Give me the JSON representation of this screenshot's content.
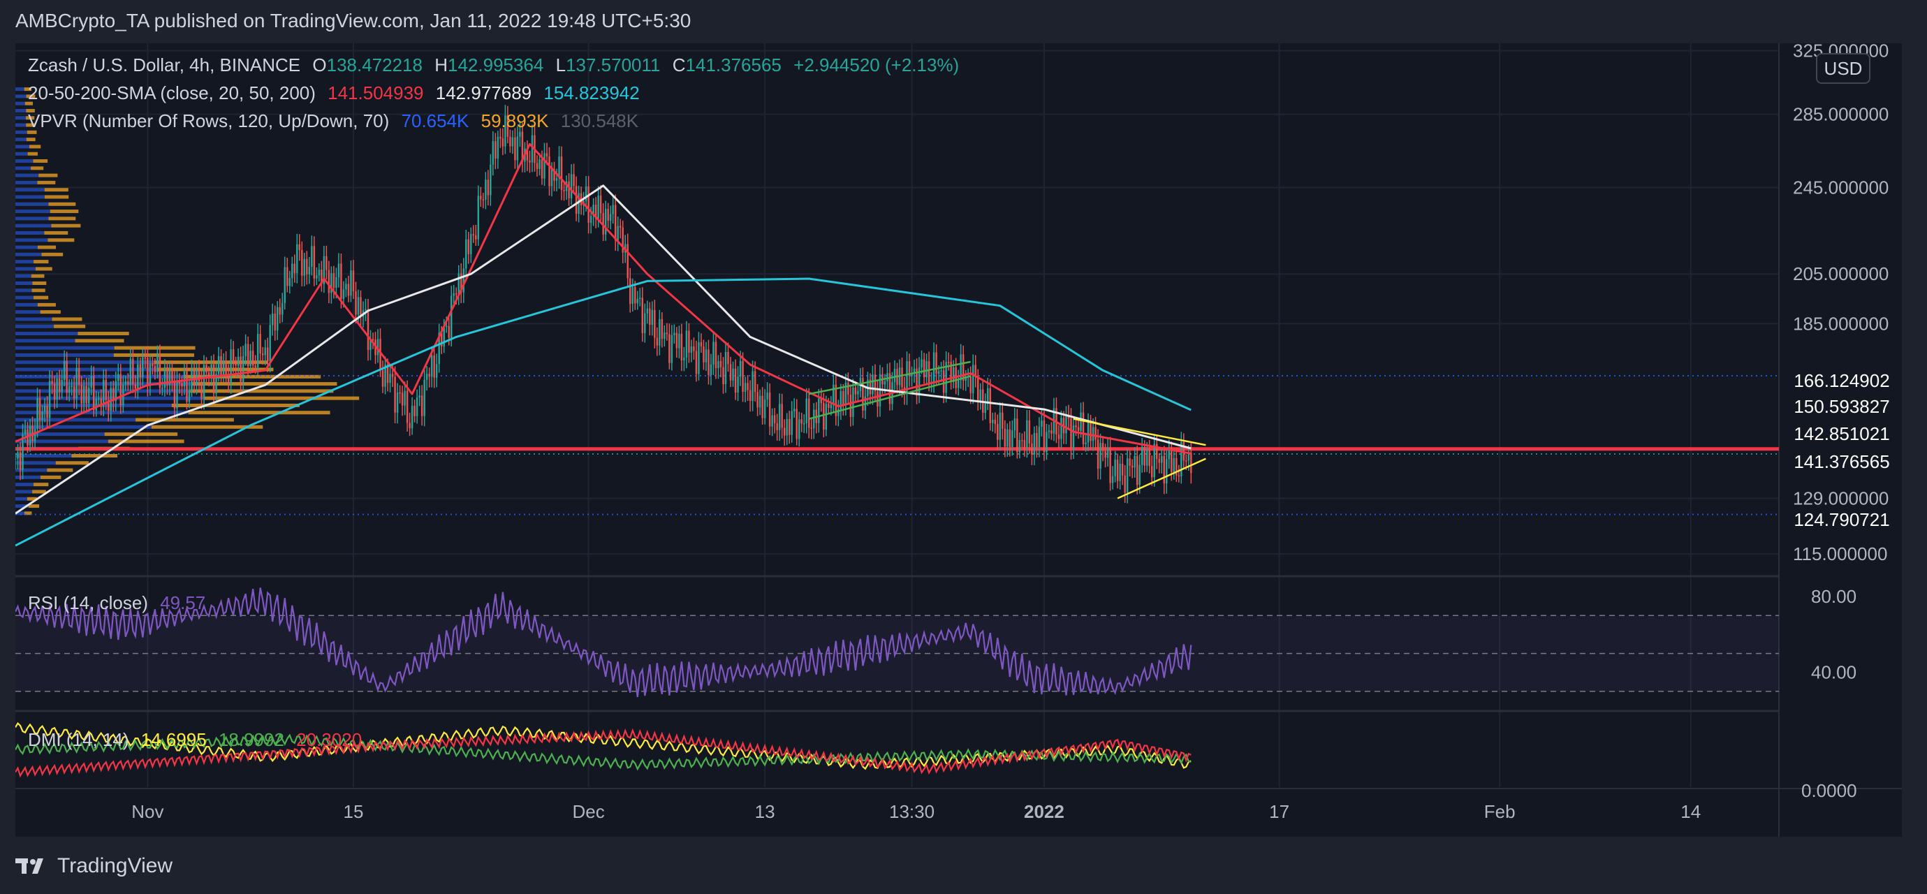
{
  "header": {
    "publisher": "AMBCrypto_TA published on TradingView.com, Jan 11, 2022 19:48 UTC+5:30"
  },
  "footer": {
    "brand": "TradingView"
  },
  "legend": {
    "symbol": "Zcash / U.S. Dollar, 4h, BINANCE",
    "ohlc": {
      "o_label": "O",
      "o": "138.472218",
      "h_label": "H",
      "h": "142.995364",
      "l_label": "L",
      "l": "137.570011",
      "c_label": "C",
      "c": "141.376565",
      "change": "+2.944520 (+2.13%)"
    },
    "sma": {
      "label": "20-50-200-SMA (close, 20, 50, 200)",
      "v20": "141.504939",
      "v50": "142.977689",
      "v200": "154.823942"
    },
    "vpvr": {
      "label": "VPVR (Number Of Rows, 120, Up/Down, 70)",
      "up": "70.654K",
      "down": "59.893K",
      "total": "130.548K"
    },
    "rsi": {
      "label": "RSI (14, close)",
      "value": "49.57"
    },
    "dmi": {
      "label": "DMI (14, 14)",
      "adx": "14.6995",
      "plus": "18.9992",
      "minus": "20.3020"
    }
  },
  "axis": {
    "currency": "USD",
    "price_ticks": [
      "325.000000",
      "285.000000",
      "245.000000",
      "205.000000",
      "185.000000",
      "129.000000",
      "115.000000"
    ],
    "rsi_ticks": [
      "80.00",
      "40.00"
    ],
    "dmi_ticks": [
      "0.0000"
    ],
    "time_ticks": [
      "Nov",
      "15",
      "Dec",
      "13",
      "13:30",
      "2022",
      "17",
      "Feb",
      "14"
    ]
  },
  "price_tags": [
    {
      "value": "166.124902",
      "color": "#2962ff"
    },
    {
      "value": "150.593827",
      "color": "#f23645"
    },
    {
      "value": "142.851021",
      "color": "#2962ff"
    },
    {
      "value": "141.376565",
      "color": "#26a69a"
    },
    {
      "value": "124.790721",
      "color": "#2962ff"
    }
  ],
  "colors": {
    "sma20": "#f23645",
    "sma50": "#e8e8e8",
    "sma200": "#26c6da",
    "up": "#26a69a",
    "down": "#ef5350",
    "rsi": "#7e57c2",
    "adx": "#ffeb3b",
    "plus_di": "#4caf50",
    "minus_di": "#f23645",
    "vp_up": "#2962ff",
    "vp_down": "#f5a623"
  },
  "chart_data": [
    {
      "type": "line",
      "title": "Zcash / U.S. Dollar, 4h, BINANCE",
      "x_range": [
        "2021-10-23",
        "2022-02-20"
      ],
      "ylim": [
        110,
        330
      ],
      "y_scale": "log",
      "grid": true,
      "horizontal_levels": [
        166.124902,
        150.593827,
        142.851021,
        141.376565,
        124.790721
      ],
      "close_path": [
        {
          "x": "2021-10-23",
          "y": 140
        },
        {
          "x": "2021-10-26",
          "y": 165
        },
        {
          "x": "2021-10-29",
          "y": 158
        },
        {
          "x": "2021-11-01",
          "y": 170
        },
        {
          "x": "2021-11-03",
          "y": 162
        },
        {
          "x": "2021-11-06",
          "y": 168
        },
        {
          "x": "2021-11-09",
          "y": 175
        },
        {
          "x": "2021-11-11",
          "y": 212
        },
        {
          "x": "2021-11-13",
          "y": 205
        },
        {
          "x": "2021-11-15",
          "y": 198
        },
        {
          "x": "2021-11-17",
          "y": 168
        },
        {
          "x": "2021-11-19",
          "y": 152
        },
        {
          "x": "2021-11-21",
          "y": 178
        },
        {
          "x": "2021-11-23",
          "y": 220
        },
        {
          "x": "2021-11-25",
          "y": 275
        },
        {
          "x": "2021-11-27",
          "y": 262
        },
        {
          "x": "2021-11-29",
          "y": 250
        },
        {
          "x": "2021-12-01",
          "y": 235
        },
        {
          "x": "2021-12-03",
          "y": 228
        },
        {
          "x": "2021-12-04",
          "y": 195
        },
        {
          "x": "2021-12-06",
          "y": 180
        },
        {
          "x": "2021-12-08",
          "y": 175
        },
        {
          "x": "2021-12-10",
          "y": 170
        },
        {
          "x": "2021-12-12",
          "y": 162
        },
        {
          "x": "2021-12-14",
          "y": 150
        },
        {
          "x": "2021-12-16",
          "y": 152
        },
        {
          "x": "2021-12-18",
          "y": 158
        },
        {
          "x": "2021-12-21",
          "y": 163
        },
        {
          "x": "2021-12-24",
          "y": 168
        },
        {
          "x": "2021-12-27",
          "y": 166
        },
        {
          "x": "2021-12-29",
          "y": 148
        },
        {
          "x": "2021-12-31",
          "y": 145
        },
        {
          "x": "2022-01-02",
          "y": 150
        },
        {
          "x": "2022-01-04",
          "y": 148
        },
        {
          "x": "2022-01-06",
          "y": 135
        },
        {
          "x": "2022-01-08",
          "y": 140
        },
        {
          "x": "2022-01-10",
          "y": 138
        },
        {
          "x": "2022-01-11",
          "y": 141.38
        }
      ],
      "series": [
        {
          "name": "SMA 20",
          "values": [
            {
              "x": "2021-10-23",
              "y": 145
            },
            {
              "x": "2021-11-01",
              "y": 163
            },
            {
              "x": "2021-11-09",
              "y": 168
            },
            {
              "x": "2021-11-13",
              "y": 203
            },
            {
              "x": "2021-11-19",
              "y": 160
            },
            {
              "x": "2021-11-27",
              "y": 268
            },
            {
              "x": "2021-12-05",
              "y": 205
            },
            {
              "x": "2021-12-12",
              "y": 170
            },
            {
              "x": "2021-12-18",
              "y": 156
            },
            {
              "x": "2021-12-27",
              "y": 167
            },
            {
              "x": "2022-01-03",
              "y": 148
            },
            {
              "x": "2022-01-11",
              "y": 141.5
            }
          ]
        },
        {
          "name": "SMA 50",
          "values": [
            {
              "x": "2021-10-23",
              "y": 125
            },
            {
              "x": "2021-11-01",
              "y": 150
            },
            {
              "x": "2021-11-09",
              "y": 163
            },
            {
              "x": "2021-11-16",
              "y": 190
            },
            {
              "x": "2021-11-23",
              "y": 205
            },
            {
              "x": "2021-12-02",
              "y": 246
            },
            {
              "x": "2021-12-12",
              "y": 180
            },
            {
              "x": "2021-12-20",
              "y": 162
            },
            {
              "x": "2022-01-01",
              "y": 155
            },
            {
              "x": "2022-01-11",
              "y": 143
            }
          ]
        },
        {
          "name": "SMA 200",
          "values": [
            {
              "x": "2021-10-23",
              "y": 117
            },
            {
              "x": "2021-11-08",
              "y": 150
            },
            {
              "x": "2021-11-22",
              "y": 180
            },
            {
              "x": "2021-12-05",
              "y": 202
            },
            {
              "x": "2021-12-16",
              "y": 203
            },
            {
              "x": "2021-12-29",
              "y": 192
            },
            {
              "x": "2022-01-05",
              "y": 168
            },
            {
              "x": "2022-01-11",
              "y": 154.8
            }
          ]
        }
      ]
    },
    {
      "type": "line",
      "title": "RSI (14, close)",
      "ylim": [
        20,
        90
      ],
      "bands": [
        70,
        50,
        30
      ],
      "series": [
        {
          "name": "RSI",
          "values": [
            {
              "x": "2021-10-23",
              "y": 72
            },
            {
              "x": "2021-10-31",
              "y": 65
            },
            {
              "x": "2021-11-09",
              "y": 78
            },
            {
              "x": "2021-11-17",
              "y": 32
            },
            {
              "x": "2021-11-25",
              "y": 75
            },
            {
              "x": "2021-12-04",
              "y": 35
            },
            {
              "x": "2021-12-14",
              "y": 42
            },
            {
              "x": "2021-12-27",
              "y": 62
            },
            {
              "x": "2021-12-31",
              "y": 38
            },
            {
              "x": "2022-01-06",
              "y": 32
            },
            {
              "x": "2022-01-11",
              "y": 49.57
            }
          ]
        }
      ]
    },
    {
      "type": "line",
      "title": "DMI (14, 14)",
      "ylim": [
        0,
        50
      ],
      "series": [
        {
          "name": "ADX",
          "values": [
            {
              "x": "2021-10-23",
              "y": 40
            },
            {
              "x": "2021-11-09",
              "y": 20
            },
            {
              "x": "2021-11-25",
              "y": 38
            },
            {
              "x": "2021-12-20",
              "y": 15
            },
            {
              "x": "2022-01-06",
              "y": 25
            },
            {
              "x": "2022-01-11",
              "y": 14.6995
            }
          ]
        },
        {
          "name": "+DI",
          "values": [
            {
              "x": "2021-10-23",
              "y": 25
            },
            {
              "x": "2021-11-11",
              "y": 32
            },
            {
              "x": "2021-12-04",
              "y": 15
            },
            {
              "x": "2021-12-27",
              "y": 22
            },
            {
              "x": "2022-01-11",
              "y": 18.9992
            }
          ]
        },
        {
          "name": "-DI",
          "values": [
            {
              "x": "2021-10-23",
              "y": 10
            },
            {
              "x": "2021-11-17",
              "y": 28
            },
            {
              "x": "2021-12-04",
              "y": 35
            },
            {
              "x": "2021-12-24",
              "y": 12
            },
            {
              "x": "2022-01-06",
              "y": 30
            },
            {
              "x": "2022-01-11",
              "y": 20.302
            }
          ]
        }
      ]
    }
  ]
}
